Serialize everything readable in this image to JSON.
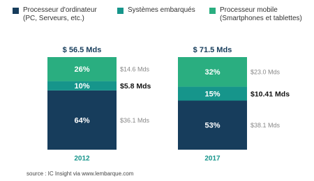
{
  "chart_data": {
    "type": "stacked_bar",
    "categories": [
      "2012",
      "2017"
    ],
    "totals": [
      "$ 56.5 Mds",
      "$ 71.5 Mds"
    ],
    "series": [
      {
        "name": "Processeur d'ordinateur (PC, Serveurs, etc.)",
        "color": "#173d5c",
        "values": [
          64,
          53
        ],
        "value_labels": [
          "64%",
          "53%"
        ],
        "amount_labels": [
          "$36.1 Mds",
          "$38.1 Mds"
        ]
      },
      {
        "name": "Systèmes embarqués",
        "color": "#16958b",
        "values": [
          10,
          15
        ],
        "value_labels": [
          "10%",
          "15%"
        ],
        "amount_labels": [
          "$5.8 Mds",
          "$10.41 Mds"
        ]
      },
      {
        "name": "Processeur mobile (Smartphones et tablettes)",
        "color": "#2aae80",
        "values": [
          26,
          32
        ],
        "value_labels": [
          "26%",
          "32%"
        ],
        "amount_labels": [
          "$14.6 Mds",
          "$23.0 Mds"
        ]
      }
    ],
    "source": "source : IC Insight via www.lembarque.com"
  }
}
